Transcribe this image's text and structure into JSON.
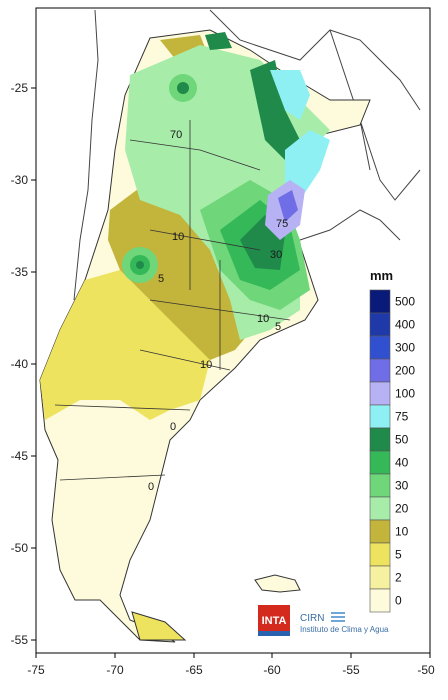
{
  "map": {
    "x_ticks": [
      "-75",
      "-70",
      "-65",
      "-60",
      "-55",
      "-50"
    ],
    "y_ticks": [
      "-25",
      "-30",
      "-35",
      "-40",
      "-45",
      "-50",
      "-55"
    ],
    "contour_labels": [
      "70",
      "10",
      "5",
      "75",
      "30",
      "10",
      "5",
      "10",
      "0",
      "0"
    ]
  },
  "legend": {
    "unit": "mm",
    "bins": [
      {
        "label": "500",
        "color": "#0a1a78"
      },
      {
        "label": "400",
        "color": "#1f3aa8"
      },
      {
        "label": "300",
        "color": "#3150d0"
      },
      {
        "label": "200",
        "color": "#6f6ee6"
      },
      {
        "label": "100",
        "color": "#b6b2f3"
      },
      {
        "label": "75",
        "color": "#8ff0f4"
      },
      {
        "label": "50",
        "color": "#1f8a4a"
      },
      {
        "label": "40",
        "color": "#35b858"
      },
      {
        "label": "30",
        "color": "#6fd67a"
      },
      {
        "label": "20",
        "color": "#a8ecaa"
      },
      {
        "label": "10",
        "color": "#c3b43b"
      },
      {
        "label": "5",
        "color": "#eee35e"
      },
      {
        "label": "2",
        "color": "#f6f1a0"
      },
      {
        "label": "0",
        "color": "#fdfbdc"
      }
    ]
  },
  "logos": {
    "inta": "INTA",
    "cirn": "CIRN",
    "institute": "Instituto de Clima y Agua"
  }
}
